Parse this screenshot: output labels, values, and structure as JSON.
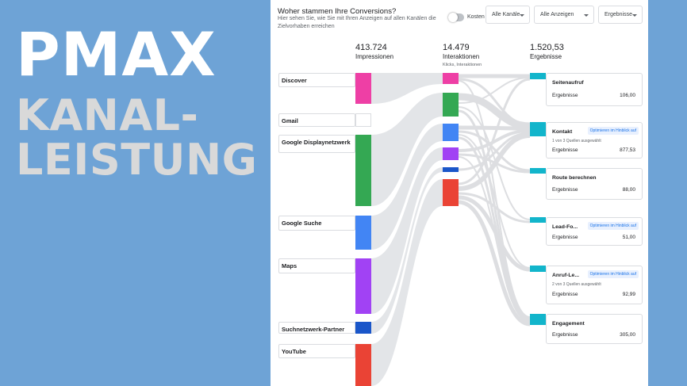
{
  "hero": {
    "line1": "PMAX",
    "line2": "KANAL-",
    "line3": "LEISTUNG"
  },
  "header": {
    "title": "Woher stammen Ihre Conversions?",
    "description": "Hier sehen Sie, wie Sie mit Ihren Anzeigen auf allen Kanälen die Zielvorhaben erreichen",
    "toggle_label": "Kosten",
    "dropdowns": [
      "Alle Kanäle",
      "Alle Anzeigen",
      "Ergebnisse"
    ]
  },
  "metrics": {
    "impressions": {
      "value": "413.724",
      "label": "Impressionen"
    },
    "interactions": {
      "value": "14.479",
      "label": "Interaktionen",
      "sub": "Klicks, Interaktionen"
    },
    "results": {
      "value": "1.520,53",
      "label": "Ergebnisse"
    }
  },
  "channels": [
    {
      "label": "Discover",
      "color": "#ee3fa5"
    },
    {
      "label": "Gmail",
      "color": "#ffffff"
    },
    {
      "label": "Google Displaynetzwerk",
      "color": "#34a853"
    },
    {
      "label": "Google Suche",
      "color": "#4285f4"
    },
    {
      "label": "Maps",
      "color": "#a142f4"
    },
    {
      "label": "Suchnetzwerk-Partner",
      "color": "#1a56c9"
    },
    {
      "label": "YouTube",
      "color": "#ea4335"
    }
  ],
  "goals": [
    {
      "title": "Seitenaufruf",
      "result_label": "Ergebnisse",
      "result_value": "106,00"
    },
    {
      "title": "Kontakt",
      "badge": "Optimieren im Hinblick auf",
      "sources_note": "1 von 3 Quellen ausgewählt",
      "result_label": "Ergebnisse",
      "result_value": "877,53"
    },
    {
      "title": "Route berechnen",
      "result_label": "Ergebnisse",
      "result_value": "88,00"
    },
    {
      "title": "Lead-Fo...",
      "badge": "Optimieren im Hinblick auf",
      "result_label": "Ergebnisse",
      "result_value": "51,00"
    },
    {
      "title": "Anruf-Le...",
      "badge": "Optimieren im Hinblick auf",
      "sources_note": "2 von 3 Quellen ausgewählt",
      "result_label": "Ergebnisse",
      "result_value": "92,99"
    },
    {
      "title": "Engagement",
      "result_label": "Ergebnisse",
      "result_value": "305,00"
    }
  ],
  "colors": {
    "goal_marker": "#12b5cb",
    "flow": "#dadce0",
    "background": "#6ea3d6"
  }
}
